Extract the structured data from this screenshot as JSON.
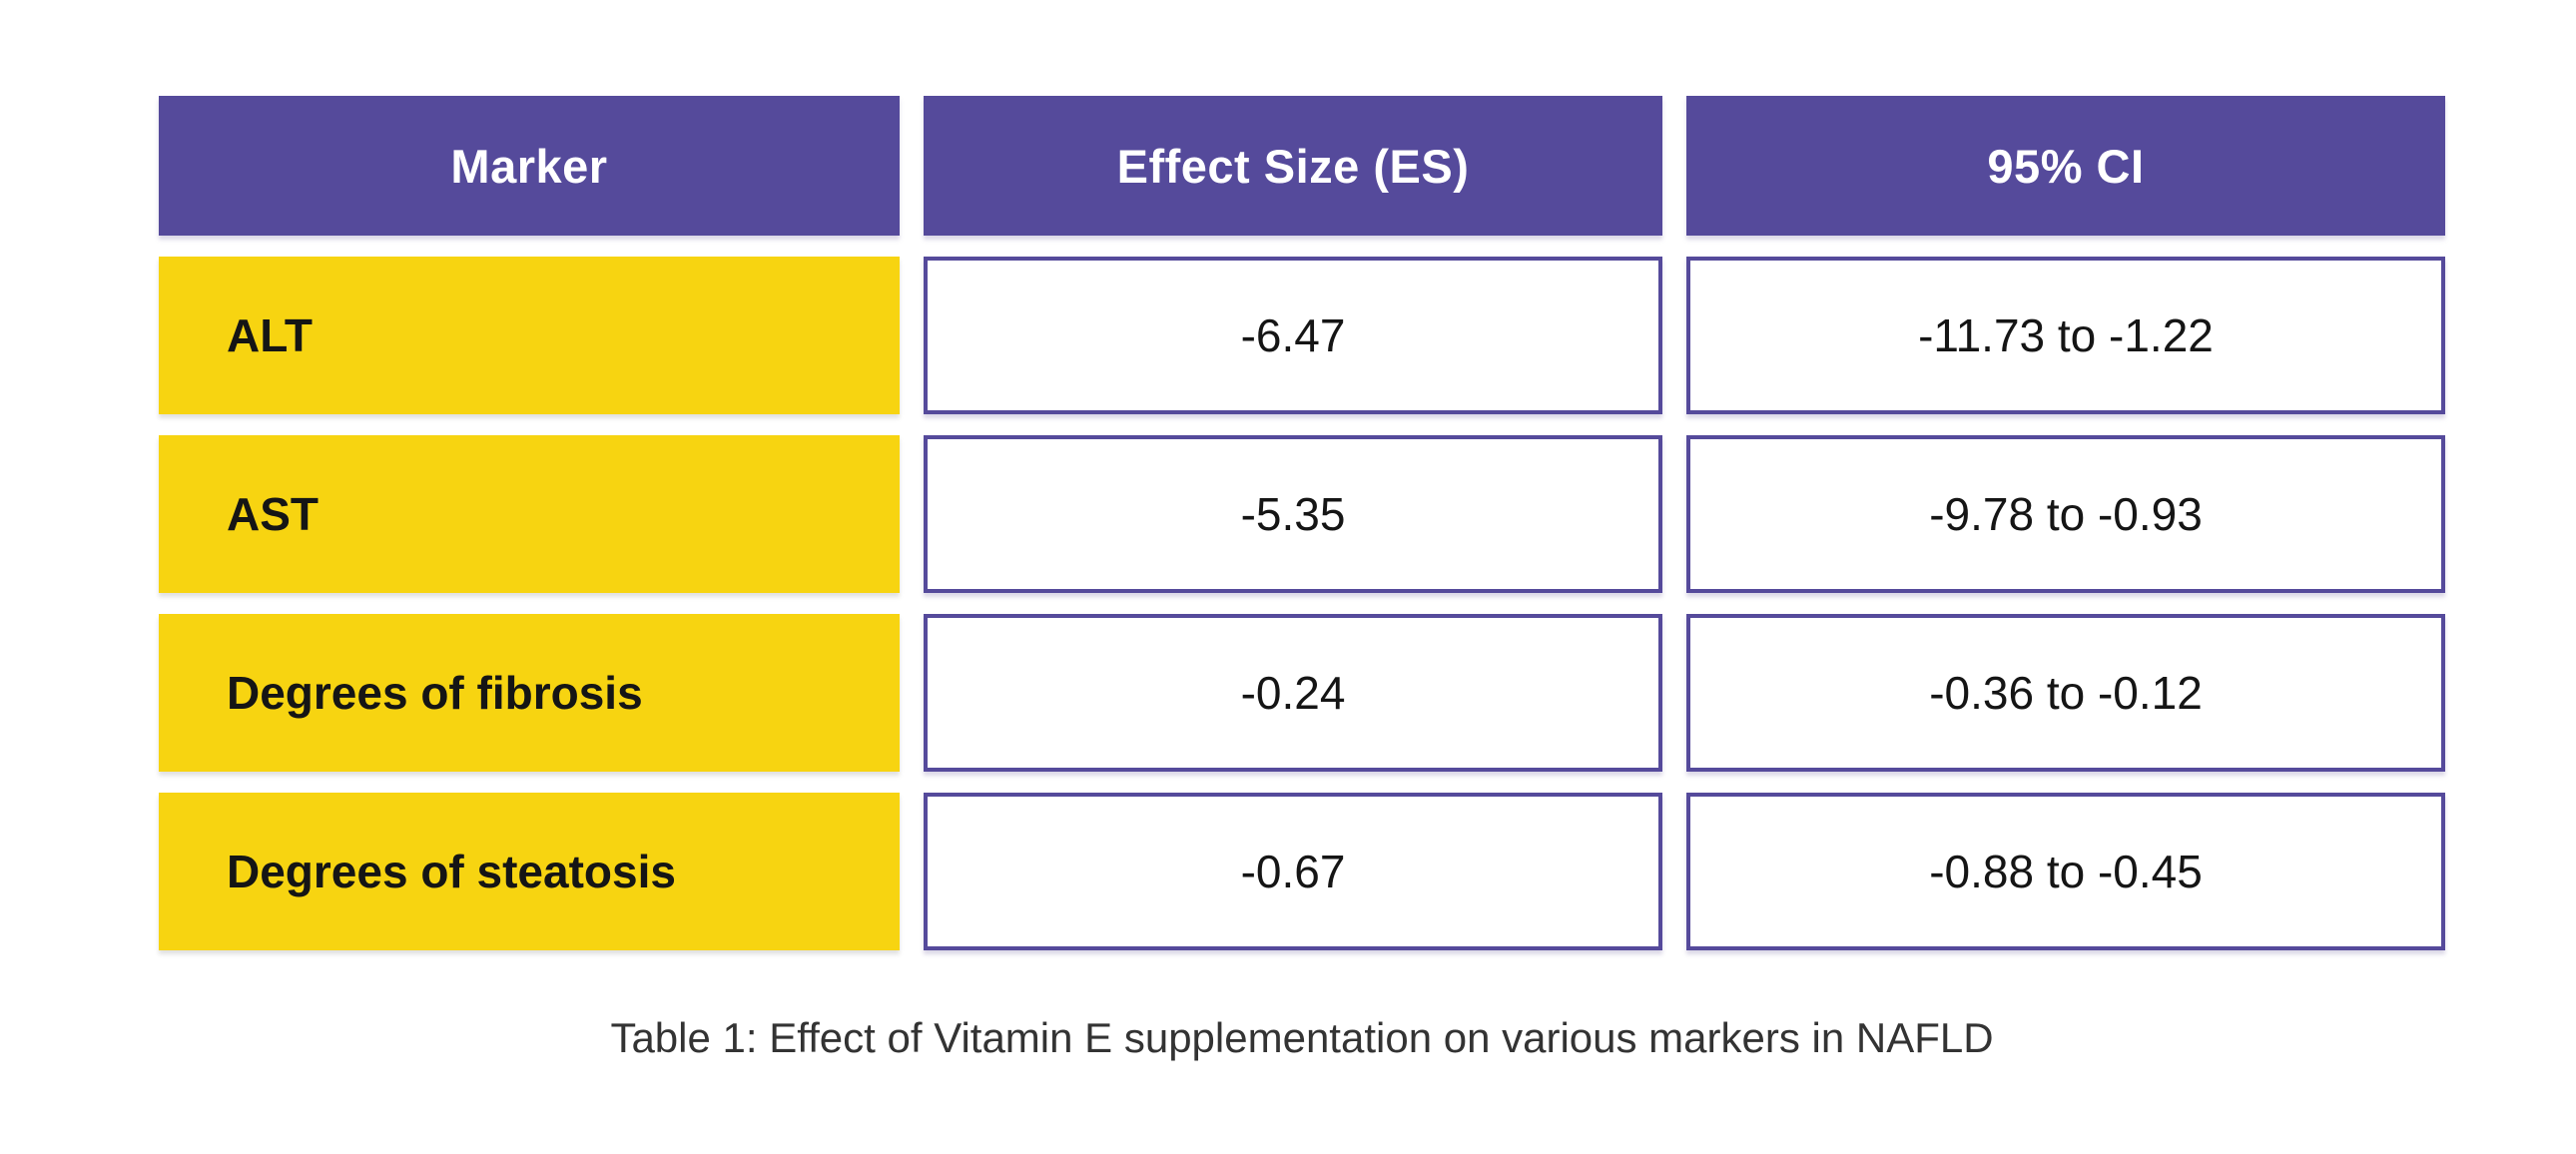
{
  "table": {
    "columns": [
      {
        "label": "Marker"
      },
      {
        "label": "Effect Size (ES)"
      },
      {
        "label": "95% CI"
      }
    ],
    "rows": [
      {
        "marker": "ALT",
        "es": "-6.47",
        "ci": "-11.73 to -1.22"
      },
      {
        "marker": "AST",
        "es": "-5.35",
        "ci": "-9.78 to -0.93"
      },
      {
        "marker": "Degrees of fibrosis",
        "es": "-0.24",
        "ci": "-0.36 to -0.12"
      },
      {
        "marker": "Degrees of steatosis",
        "es": "-0.67",
        "ci": "-0.88 to -0.45"
      }
    ],
    "caption": "Table 1: Effect of Vitamin E supplementation on various markers in NAFLD"
  },
  "chart_data": {
    "type": "table",
    "title": "Table 1: Effect of Vitamin E supplementation on various markers in NAFLD",
    "columns": [
      "Marker",
      "Effect Size (ES)",
      "95% CI"
    ],
    "rows": [
      [
        "ALT",
        -6.47,
        "-11.73 to -1.22"
      ],
      [
        "AST",
        -5.35,
        "-9.78 to -0.93"
      ],
      [
        "Degrees of fibrosis",
        -0.24,
        "-0.36 to -0.12"
      ],
      [
        "Degrees of steatosis",
        -0.67,
        "-0.88 to -0.45"
      ]
    ],
    "es_values": [
      -6.47,
      -5.35,
      -0.24,
      -0.67
    ],
    "ci_low": [
      -11.73,
      -9.78,
      -0.36,
      -0.88
    ],
    "ci_high": [
      -1.22,
      -0.93,
      -0.12,
      -0.45
    ]
  },
  "colors": {
    "header_bg": "#554A9B",
    "row_label_bg": "#F7D411",
    "cell_border": "#554A9B",
    "header_text": "#FFFFFF",
    "body_text": "#151515",
    "caption_text": "#333333",
    "page_bg": "#FFFFFF"
  }
}
